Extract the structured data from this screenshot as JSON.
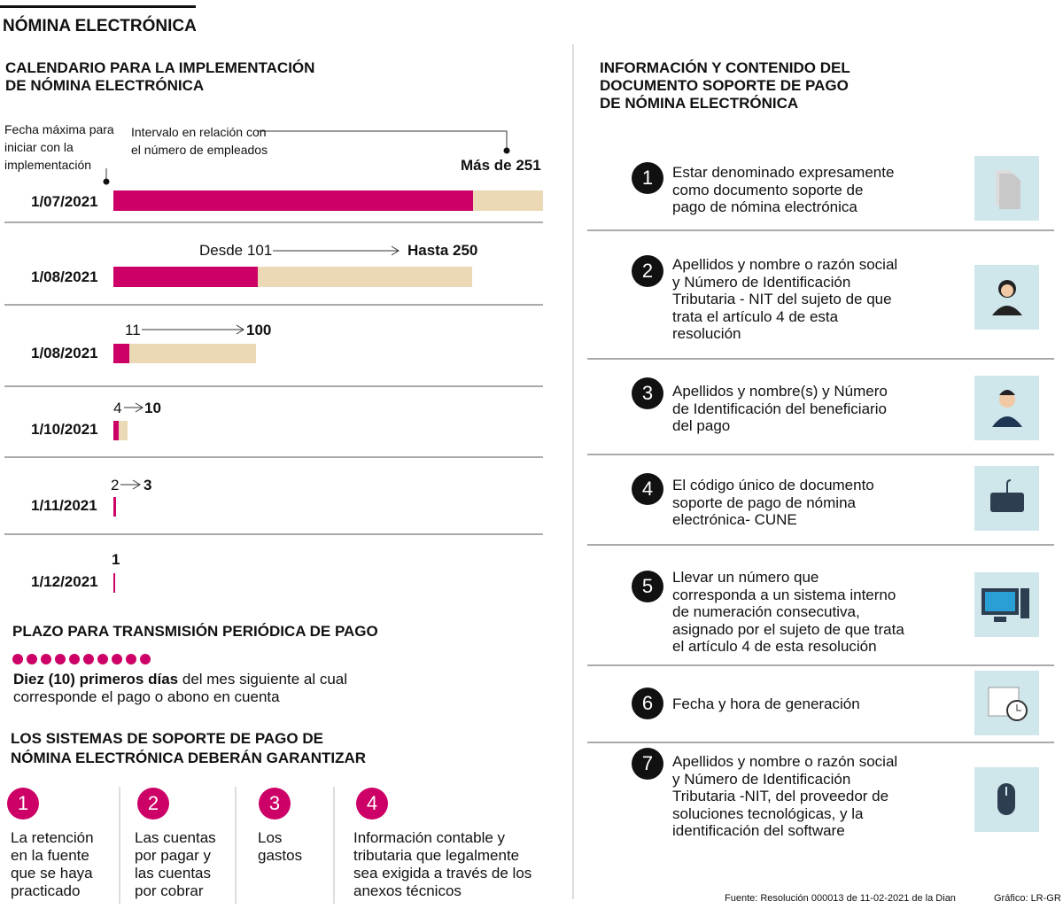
{
  "header": {
    "title": "NÓMINA ELECTRÓNICA"
  },
  "calendar": {
    "title": [
      "CALENDARIO PARA LA IMPLEMENTACIÓN",
      "DE NÓMINA ELECTRÓNICA"
    ],
    "legend_date": [
      "Fecha máxima para",
      "iniciar con la",
      "implementación"
    ],
    "legend_interval": [
      "Intervalo en relación con",
      "el número de empleados"
    ],
    "rows": [
      {
        "date": "1/07/2021",
        "to": "Más de 251"
      },
      {
        "date": "1/08/2021",
        "from": "Desde 101",
        "to": "Hasta 250"
      },
      {
        "date": "1/08/2021",
        "from": "11",
        "to": "100"
      },
      {
        "date": "1/10/2021",
        "from": "4",
        "to": "10"
      },
      {
        "date": "1/11/2021",
        "from": "2",
        "to": "3"
      },
      {
        "date": "1/12/2021",
        "to": "1"
      }
    ]
  },
  "plazo": {
    "title": "PLAZO PARA TRANSMISIÓN PERIÓDICA DE PAGO",
    "bold": "Diez (10) primeros días",
    "text": [
      "del mes siguiente al cual",
      "corresponde el pago o abono en cuenta"
    ]
  },
  "sistemas": {
    "title": [
      "LOS SISTEMAS DE SOPORTE DE PAGO DE",
      "NÓMINA ELECTRÓNICA  DEBERÁN GARANTIZAR"
    ],
    "items": [
      {
        "number": "1",
        "lines": [
          "La retención",
          "en la fuente",
          "que se haya",
          "practicado"
        ]
      },
      {
        "number": "2",
        "lines": [
          "Las cuentas",
          "por pagar y",
          "las cuentas",
          "por cobrar"
        ]
      },
      {
        "number": "3",
        "lines": [
          "Los",
          "gastos"
        ]
      },
      {
        "number": "4",
        "lines": [
          "Información contable y",
          "tributaria que legalmente",
          "sea exigida a través de los",
          "anexos técnicos"
        ]
      }
    ]
  },
  "info": {
    "title": [
      "INFORMACIÓN Y CONTENIDO DEL",
      "DOCUMENTO SOPORTE DE PAGO",
      "DE NÓMINA ELECTRÓNICA"
    ],
    "items": [
      {
        "number": "1",
        "lines": [
          "Estar denominado expresamente",
          "como documento soporte de",
          "pago de nómina electrónica"
        ]
      },
      {
        "number": "2",
        "lines": [
          "Apellidos y nombre o razón social",
          "y Número de Identificación",
          "Tributaria - NIT del sujeto de que",
          "trata el artículo 4 de esta",
          "resolución"
        ]
      },
      {
        "number": "3",
        "lines": [
          "Apellidos y nombre(s) y Número",
          "de Identificación del beneficiario",
          "del pago"
        ]
      },
      {
        "number": "4",
        "lines": [
          "El código único de documento",
          "soporte de pago de nómina",
          "electrónica- CUNE"
        ]
      },
      {
        "number": "5",
        "lines": [
          "Llevar un número que",
          "corresponda a un sistema interno",
          "de numeración consecutiva,",
          "asignado por el sujeto de que trata",
          "el artículo 4 de esta resolución"
        ]
      },
      {
        "number": "6",
        "lines": [
          "Fecha y hora de generación"
        ]
      },
      {
        "number": "7",
        "lines": [
          "Apellidos y nombre o razón social",
          "y Número de Identificación",
          "Tributaria -NIT, del proveedor de",
          "soluciones tecnológicas, y la",
          "identificación del software"
        ]
      }
    ]
  },
  "footer": {
    "source": "Fuente: Resolución 000013 de 11-02-2021 de la Dian",
    "credit": "Gráfico: LR-GR"
  }
}
